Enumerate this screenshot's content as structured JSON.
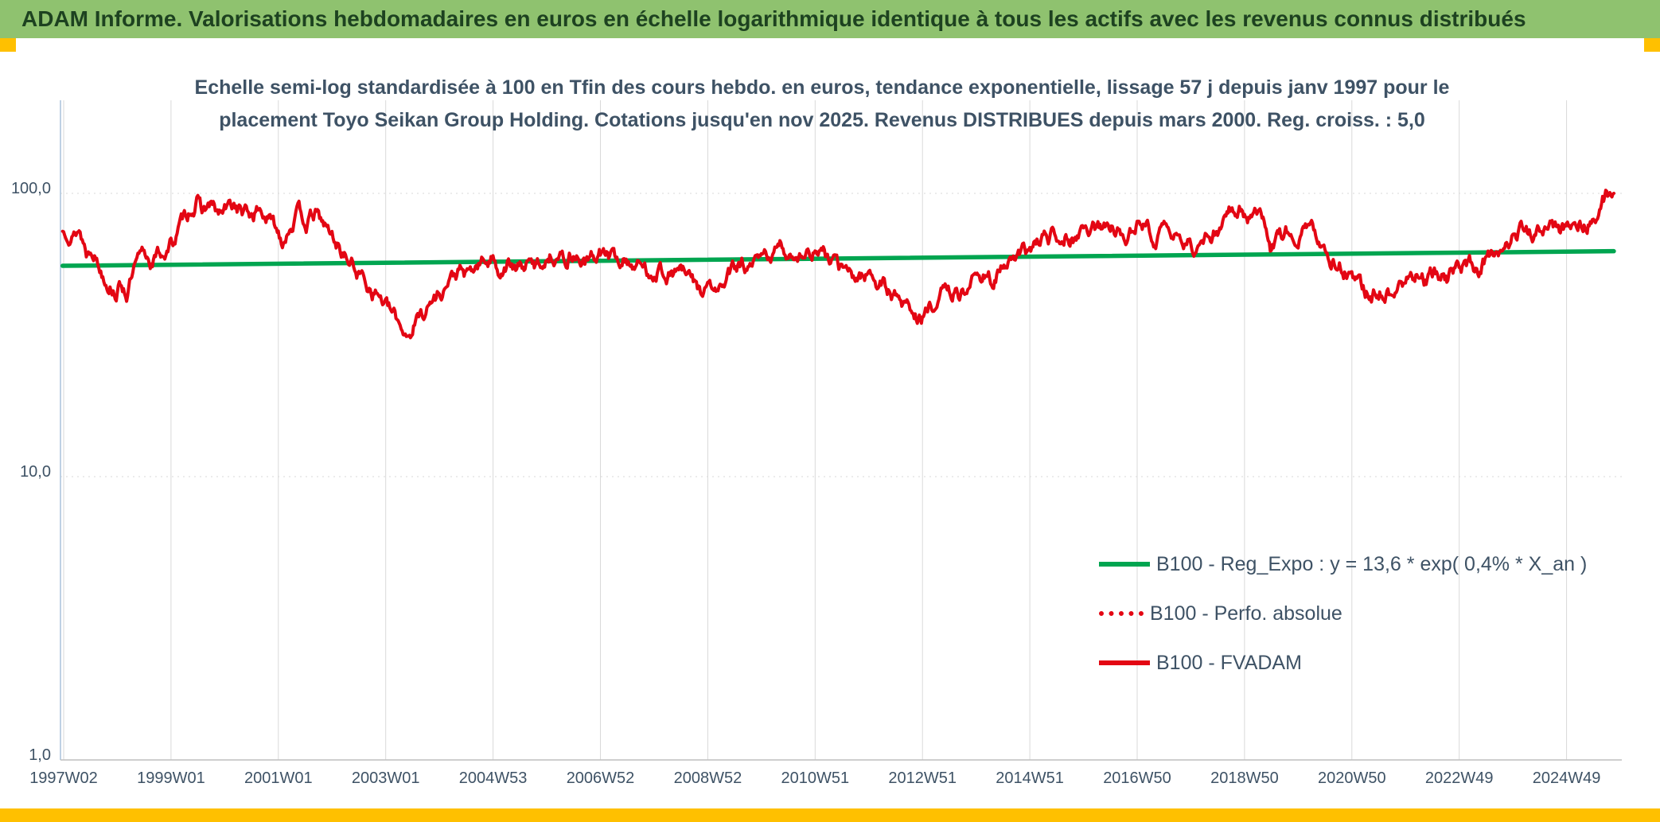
{
  "header": {
    "title": "ADAM Informe. Valorisations hebdomadaires en euros en échelle logarithmique identique à tous les actifs avec les revenus connus distribués"
  },
  "colors": {
    "header_bg": "#8FC26F",
    "header_text": "#1D4220",
    "accent_gold": "#FFC000",
    "title_text": "#3E5265",
    "axis_text": "#3E5265",
    "grid": "#D9D9D9",
    "axis_line": "#A9C2DB",
    "baseline": "#BFBFBF",
    "series_green": "#00A550",
    "series_red": "#E30613"
  },
  "chart_data": {
    "type": "line",
    "scale": "semi-log",
    "title_lines": [
      "Echelle semi-log standardisée à 100 en Tfin des cours hebdo. en euros, tendance exponentielle, lissage 57 j depuis janv 1997 pour le",
      "placement Toyo Seikan Group Holding. Cotations jusqu'en nov 2025. Revenus DISTRIBUES depuis mars 2000. Reg. croiss. : 5,0"
    ],
    "y_axis": {
      "scale": "log",
      "tick_labels": [
        "100,0",
        "10,0",
        "1,0"
      ],
      "tick_values": [
        100,
        10,
        1
      ],
      "range": [
        1,
        205
      ]
    },
    "x_axis": {
      "tick_labels": [
        "1997W02",
        "1999W01",
        "2001W01",
        "2003W01",
        "2004W53",
        "2006W52",
        "2008W52",
        "2010W51",
        "2012W51",
        "2014W51",
        "2016W50",
        "2018W50",
        "2020W50",
        "2022W49",
        "2024W49"
      ],
      "start_year": 1997.02,
      "years_per_tick": 2
    },
    "legend": [
      {
        "label": "B100 - Reg_Expo : y = 13,6 * exp( 0,4% *  X_an )",
        "color": "#00A550",
        "style": "solid"
      },
      {
        "label": "B100 - Perfo. absolue",
        "color": "#E30613",
        "style": "dotted"
      },
      {
        "label": "B100 - FVADAM",
        "color": "#E30613",
        "style": "solid"
      }
    ],
    "trend_line": {
      "name": "B100 - Reg_Expo",
      "points": [
        [
          1997.0,
          55.5
        ],
        [
          2025.9,
          62.5
        ]
      ]
    },
    "series_fvadam": {
      "name": "B100 - FVADAM",
      "keypoints": [
        [
          1997.0,
          73
        ],
        [
          1997.1,
          77
        ],
        [
          1997.2,
          72
        ],
        [
          1997.3,
          76
        ],
        [
          1997.45,
          62
        ],
        [
          1997.55,
          67
        ],
        [
          1997.7,
          55
        ],
        [
          1997.85,
          50
        ],
        [
          1998.0,
          46
        ],
        [
          1998.1,
          48
        ],
        [
          1998.2,
          45
        ],
        [
          1998.35,
          54
        ],
        [
          1998.5,
          60
        ],
        [
          1998.65,
          58
        ],
        [
          1998.8,
          61
        ],
        [
          1998.95,
          63
        ],
        [
          1999.1,
          70
        ],
        [
          1999.25,
          80
        ],
        [
          1999.4,
          90
        ],
        [
          1999.5,
          94
        ],
        [
          1999.6,
          86
        ],
        [
          1999.75,
          91
        ],
        [
          1999.9,
          83
        ],
        [
          2000.05,
          87
        ],
        [
          2000.2,
          91
        ],
        [
          2000.35,
          86
        ],
        [
          2000.5,
          83
        ],
        [
          2000.65,
          88
        ],
        [
          2000.8,
          83
        ],
        [
          2000.95,
          76
        ],
        [
          2001.1,
          69
        ],
        [
          2001.25,
          80
        ],
        [
          2001.4,
          85
        ],
        [
          2001.55,
          79
        ],
        [
          2001.7,
          84
        ],
        [
          2001.85,
          78
        ],
        [
          2002.0,
          71
        ],
        [
          2002.15,
          65
        ],
        [
          2002.3,
          59
        ],
        [
          2002.5,
          53
        ],
        [
          2002.7,
          48
        ],
        [
          2002.9,
          44
        ],
        [
          2003.1,
          38
        ],
        [
          2003.3,
          34
        ],
        [
          2003.45,
          32
        ],
        [
          2003.6,
          36
        ],
        [
          2003.8,
          40
        ],
        [
          2004.0,
          44
        ],
        [
          2004.2,
          49
        ],
        [
          2004.4,
          53
        ],
        [
          2004.55,
          50
        ],
        [
          2004.7,
          54
        ],
        [
          2004.85,
          57
        ],
        [
          2005.0,
          59
        ],
        [
          2005.15,
          54
        ],
        [
          2005.3,
          57
        ],
        [
          2005.45,
          53
        ],
        [
          2005.6,
          56
        ],
        [
          2005.8,
          55
        ],
        [
          2006.0,
          59
        ],
        [
          2006.2,
          63
        ],
        [
          2006.35,
          58
        ],
        [
          2006.5,
          62
        ],
        [
          2006.65,
          59
        ],
        [
          2006.8,
          57
        ],
        [
          2007.0,
          62
        ],
        [
          2007.2,
          60
        ],
        [
          2007.35,
          57
        ],
        [
          2007.5,
          59
        ],
        [
          2007.7,
          56
        ],
        [
          2007.9,
          53
        ],
        [
          2008.1,
          55
        ],
        [
          2008.3,
          52
        ],
        [
          2008.5,
          54
        ],
        [
          2008.7,
          49
        ],
        [
          2008.9,
          45
        ],
        [
          2009.05,
          47
        ],
        [
          2009.2,
          44
        ],
        [
          2009.35,
          49
        ],
        [
          2009.5,
          53
        ],
        [
          2009.65,
          56
        ],
        [
          2009.8,
          53
        ],
        [
          2010.0,
          57
        ],
        [
          2010.2,
          61
        ],
        [
          2010.4,
          64
        ],
        [
          2010.55,
          60
        ],
        [
          2010.7,
          63
        ],
        [
          2010.9,
          61
        ],
        [
          2011.05,
          64
        ],
        [
          2011.2,
          60
        ],
        [
          2011.4,
          56
        ],
        [
          2011.6,
          52
        ],
        [
          2011.8,
          50
        ],
        [
          2012.0,
          53
        ],
        [
          2012.2,
          49
        ],
        [
          2012.4,
          45
        ],
        [
          2012.6,
          42
        ],
        [
          2012.8,
          39
        ],
        [
          2013.0,
          36
        ],
        [
          2013.15,
          39
        ],
        [
          2013.3,
          43
        ],
        [
          2013.5,
          46
        ],
        [
          2013.7,
          44
        ],
        [
          2013.85,
          47
        ],
        [
          2014.0,
          50
        ],
        [
          2014.2,
          53
        ],
        [
          2014.35,
          50
        ],
        [
          2014.5,
          54
        ],
        [
          2014.7,
          57
        ],
        [
          2014.9,
          60
        ],
        [
          2015.1,
          65
        ],
        [
          2015.3,
          69
        ],
        [
          2015.5,
          73
        ],
        [
          2015.65,
          75
        ],
        [
          2015.8,
          71
        ],
        [
          2016.0,
          74
        ],
        [
          2016.2,
          77
        ],
        [
          2016.35,
          73
        ],
        [
          2016.5,
          76
        ],
        [
          2016.7,
          73
        ],
        [
          2016.9,
          76
        ],
        [
          2017.1,
          78
        ],
        [
          2017.25,
          74
        ],
        [
          2017.4,
          71
        ],
        [
          2017.6,
          73
        ],
        [
          2017.8,
          69
        ],
        [
          2018.0,
          66
        ],
        [
          2018.2,
          64
        ],
        [
          2018.4,
          70
        ],
        [
          2018.6,
          79
        ],
        [
          2018.8,
          88
        ],
        [
          2018.95,
          91
        ],
        [
          2019.1,
          85
        ],
        [
          2019.25,
          88
        ],
        [
          2019.4,
          80
        ],
        [
          2019.5,
          66
        ],
        [
          2019.65,
          72
        ],
        [
          2019.8,
          75
        ],
        [
          2020.0,
          71
        ],
        [
          2020.2,
          74
        ],
        [
          2020.4,
          68
        ],
        [
          2020.6,
          62
        ],
        [
          2020.8,
          57
        ],
        [
          2021.0,
          50
        ],
        [
          2021.2,
          46
        ],
        [
          2021.4,
          44
        ],
        [
          2021.6,
          46
        ],
        [
          2021.8,
          44
        ],
        [
          2022.0,
          48
        ],
        [
          2022.2,
          52
        ],
        [
          2022.4,
          49
        ],
        [
          2022.6,
          52
        ],
        [
          2022.8,
          50
        ],
        [
          2023.0,
          54
        ],
        [
          2023.2,
          57
        ],
        [
          2023.4,
          55
        ],
        [
          2023.6,
          60
        ],
        [
          2023.8,
          65
        ],
        [
          2024.0,
          71
        ],
        [
          2024.15,
          75
        ],
        [
          2024.3,
          72
        ],
        [
          2024.45,
          74
        ],
        [
          2024.6,
          72
        ],
        [
          2024.75,
          74
        ],
        [
          2024.9,
          73
        ],
        [
          2025.05,
          76
        ],
        [
          2025.2,
          79
        ],
        [
          2025.35,
          78
        ],
        [
          2025.5,
          84
        ],
        [
          2025.6,
          90
        ],
        [
          2025.7,
          95
        ],
        [
          2025.78,
          99
        ],
        [
          2025.85,
          97
        ],
        [
          2025.9,
          100
        ]
      ]
    }
  }
}
